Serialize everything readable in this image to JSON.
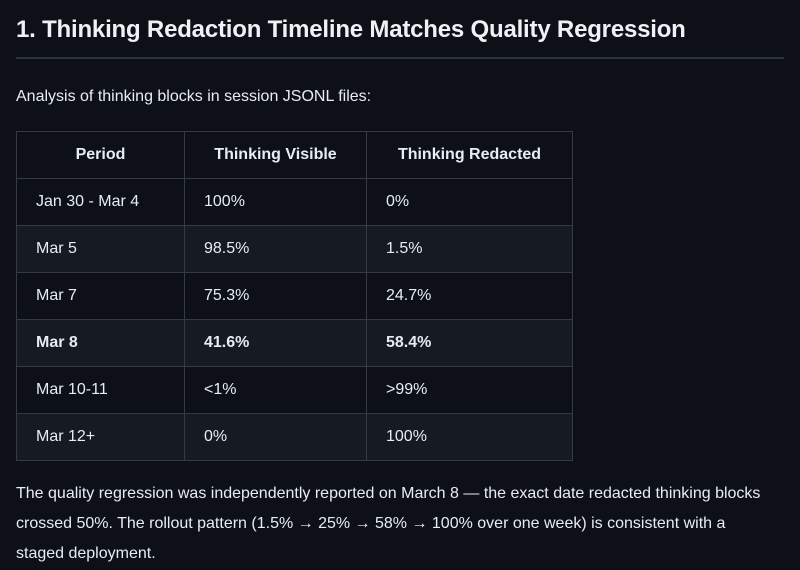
{
  "page": {
    "title": "1. Thinking Redaction Timeline Matches Quality Regression",
    "intro": "Analysis of thinking blocks in session JSONL files:",
    "footer_note": "The quality regression was independently reported on March 8 — the exact date redacted thinking blocks crossed 50%. The rollout pattern (1.5% → 25% → 58% → 100% over one week) is consistent with a staged deployment."
  },
  "table": {
    "headers": [
      "Period",
      "Thinking Visible",
      "Thinking Redacted"
    ],
    "rows": [
      {
        "period": "Jan 30 - Mar 4",
        "visible": "100%",
        "redacted": "0%",
        "emphasized": false
      },
      {
        "period": "Mar 5",
        "visible": "98.5%",
        "redacted": "1.5%",
        "emphasized": false
      },
      {
        "period": "Mar 7",
        "visible": "75.3%",
        "redacted": "24.7%",
        "emphasized": false
      },
      {
        "period": "Mar 8",
        "visible": "41.6%",
        "redacted": "58.4%",
        "emphasized": true
      },
      {
        "period": "Mar 10-11",
        "visible": "<1%",
        "redacted": ">99%",
        "emphasized": false
      },
      {
        "period": "Mar 12+",
        "visible": "0%",
        "redacted": "100%",
        "emphasized": false
      }
    ]
  },
  "colors": {
    "background": "#0d1117",
    "text": "#e6edf3",
    "table_border": "#343b46",
    "row_alt_background": "#161b22",
    "divider": "#2d333d"
  }
}
